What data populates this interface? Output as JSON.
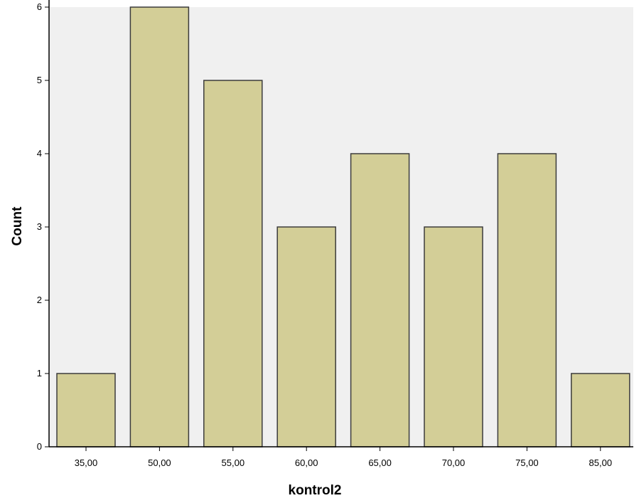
{
  "chart_data": {
    "type": "bar",
    "title": "",
    "xlabel": "kontrol2",
    "ylabel": "Count",
    "categories": [
      "35,00",
      "50,00",
      "55,00",
      "60,00",
      "65,00",
      "70,00",
      "75,00",
      "85,00"
    ],
    "values": [
      1,
      6,
      5,
      3,
      4,
      3,
      4,
      1
    ],
    "ylim": [
      0,
      6
    ],
    "yticks": [
      "0",
      "1",
      "2",
      "3",
      "4",
      "5",
      "6"
    ],
    "grid": false,
    "colors": {
      "plot_background": "#f0f0f0",
      "bar_fill": "#d3ce97",
      "bar_stroke": "#3c3c3c",
      "axis": "#000000"
    }
  }
}
